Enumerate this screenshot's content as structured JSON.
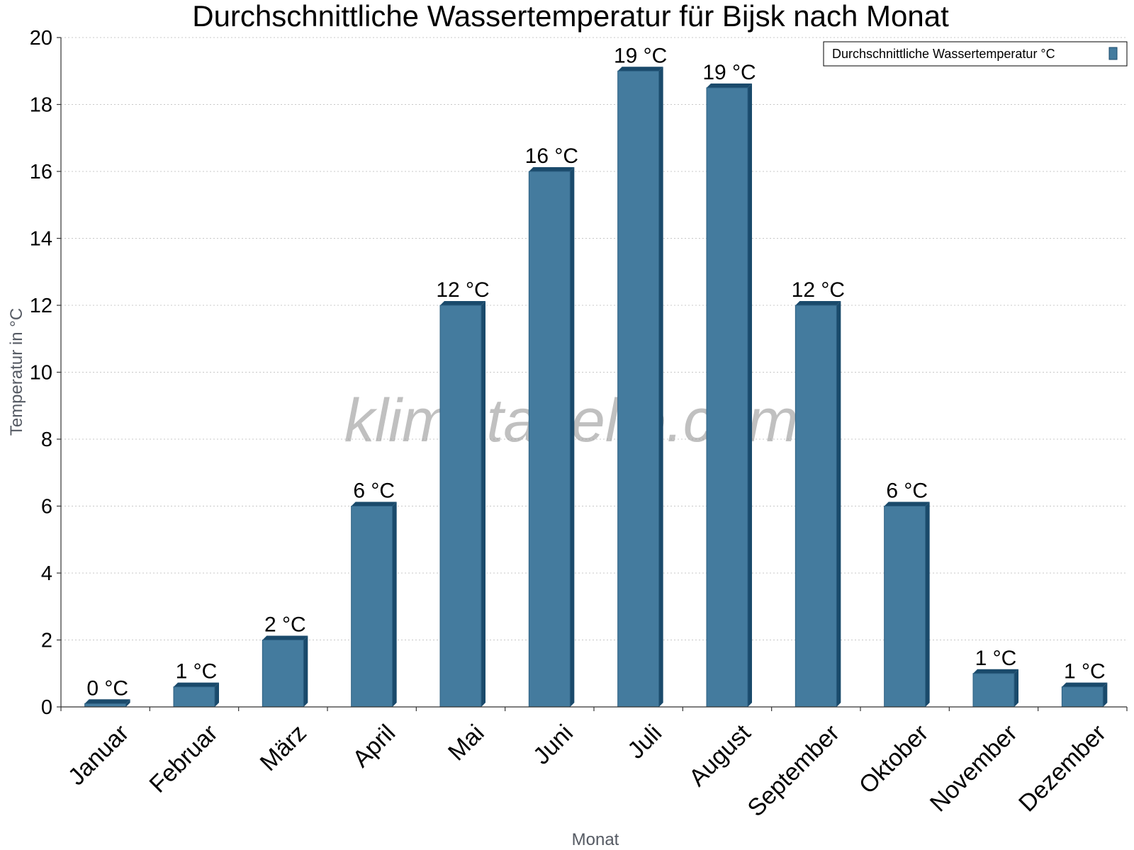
{
  "chart_data": {
    "type": "bar",
    "title": "Durchschnittliche Wassertemperatur für Bijsk nach Monat",
    "xlabel": "Monat",
    "ylabel": "Temperatur in °C",
    "categories": [
      "Januar",
      "Februar",
      "März",
      "April",
      "Mai",
      "Juni",
      "Juli",
      "August",
      "September",
      "Oktober",
      "November",
      "Dezember"
    ],
    "series": [
      {
        "name": "Durchschnittliche Wassertemperatur °C",
        "values": [
          0.1,
          0.6,
          2.0,
          6.0,
          12.0,
          16.0,
          19.0,
          18.5,
          12.0,
          6.0,
          1.0,
          0.6
        ],
        "labels": [
          "0 °C",
          "1 °C",
          "2 °C",
          "6 °C",
          "12 °C",
          "16 °C",
          "19 °C",
          "19 °C",
          "12 °C",
          "6 °C",
          "1 °C",
          "1 °C"
        ]
      }
    ],
    "ylim": [
      0,
      20
    ],
    "yticks": [
      0,
      2,
      4,
      6,
      8,
      10,
      12,
      14,
      16,
      18,
      20
    ],
    "grid": true,
    "legend_position": "top-right",
    "colors": {
      "bar_face": "#447b9e",
      "bar_dark": "#1a4a6b",
      "bar_top": "#2c5f82"
    },
    "watermark": "klimatabelle.com"
  }
}
